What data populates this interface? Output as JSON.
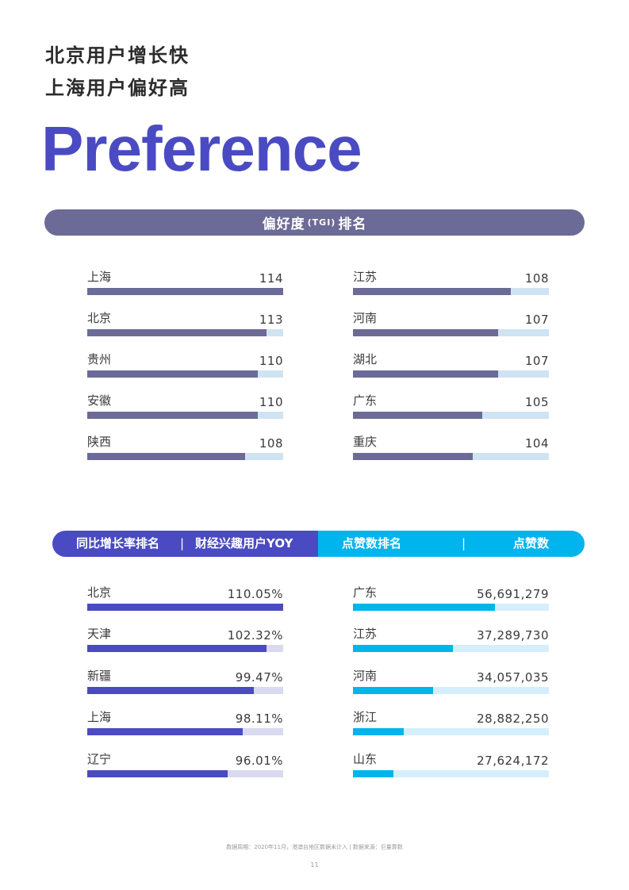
{
  "header": {
    "line1": "北京用户增长快",
    "line2": "上海用户偏好高",
    "big_word": "Preference"
  },
  "tgi_band": {
    "prefix": "偏好度",
    "tag": "(TGI)",
    "suffix": "排名"
  },
  "tgi_left": [
    {
      "label": "上海",
      "value": "114",
      "fill": 1.0
    },
    {
      "label": "北京",
      "value": "113",
      "fill": 0.915
    },
    {
      "label": "贵州",
      "value": "110",
      "fill": 0.87
    },
    {
      "label": "安徽",
      "value": "110",
      "fill": 0.87
    },
    {
      "label": "陕西",
      "value": "108",
      "fill": 0.805
    }
  ],
  "tgi_right": [
    {
      "label": "江苏",
      "value": "108",
      "fill": 0.805
    },
    {
      "label": "河南",
      "value": "107",
      "fill": 0.74
    },
    {
      "label": "湖北",
      "value": "107",
      "fill": 0.74
    },
    {
      "label": "广东",
      "value": "105",
      "fill": 0.66
    },
    {
      "label": "重庆",
      "value": "104",
      "fill": 0.61
    }
  ],
  "band2": {
    "left_title": "同比增长率排名",
    "divider": "|",
    "left_subtitle": "财经兴趣用户YOY",
    "right_title": "点赞数排名",
    "right_divider": "|",
    "right_subtitle": "点赞数"
  },
  "yoy": [
    {
      "label": "北京",
      "value": "110.05%",
      "fill": 1.0
    },
    {
      "label": "天津",
      "value": "102.32%",
      "fill": 0.915
    },
    {
      "label": "新疆",
      "value": "99.47%",
      "fill": 0.85
    },
    {
      "label": "上海",
      "value": "98.11%",
      "fill": 0.795
    },
    {
      "label": "辽宁",
      "value": "96.01%",
      "fill": 0.715
    }
  ],
  "likes": [
    {
      "label": "广东",
      "value": "56,691,279",
      "fill": 0.725
    },
    {
      "label": "江苏",
      "value": "37,289,730",
      "fill": 0.51
    },
    {
      "label": "河南",
      "value": "34,057,035",
      "fill": 0.41
    },
    {
      "label": "浙江",
      "value": "28,882,250",
      "fill": 0.26
    },
    {
      "label": "山东",
      "value": "27,624,172",
      "fill": 0.205
    }
  ],
  "colors": {
    "accent_purple": "#4a4bc2",
    "band_gray_purple": "#6c6a96",
    "cyan": "#00b4ee"
  },
  "footer": {
    "note": "数据周期：2020年11月，港澳台地区数据未计入 | 数据来源：巨量算数",
    "page": "11"
  }
}
